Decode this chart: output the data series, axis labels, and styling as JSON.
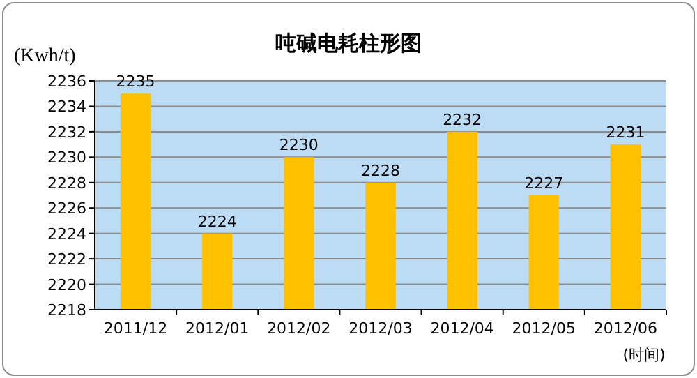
{
  "chart_data": {
    "type": "bar",
    "title": "吨碱电耗柱形图",
    "xlabel": "(时间)",
    "ylabel": "(Kwh/t)",
    "categories": [
      "2011/12",
      "2012/01",
      "2012/02",
      "2012/03",
      "2012/04",
      "2012/05",
      "2012/06"
    ],
    "values": [
      2235,
      2224,
      2230,
      2228,
      2232,
      2227,
      2231
    ],
    "color": "#ffc000",
    "ylim": [
      2218,
      2236
    ],
    "yticks": [
      2218,
      2220,
      2222,
      2224,
      2226,
      2228,
      2230,
      2232,
      2234,
      2236
    ],
    "grid": "y",
    "data_labels": true
  }
}
